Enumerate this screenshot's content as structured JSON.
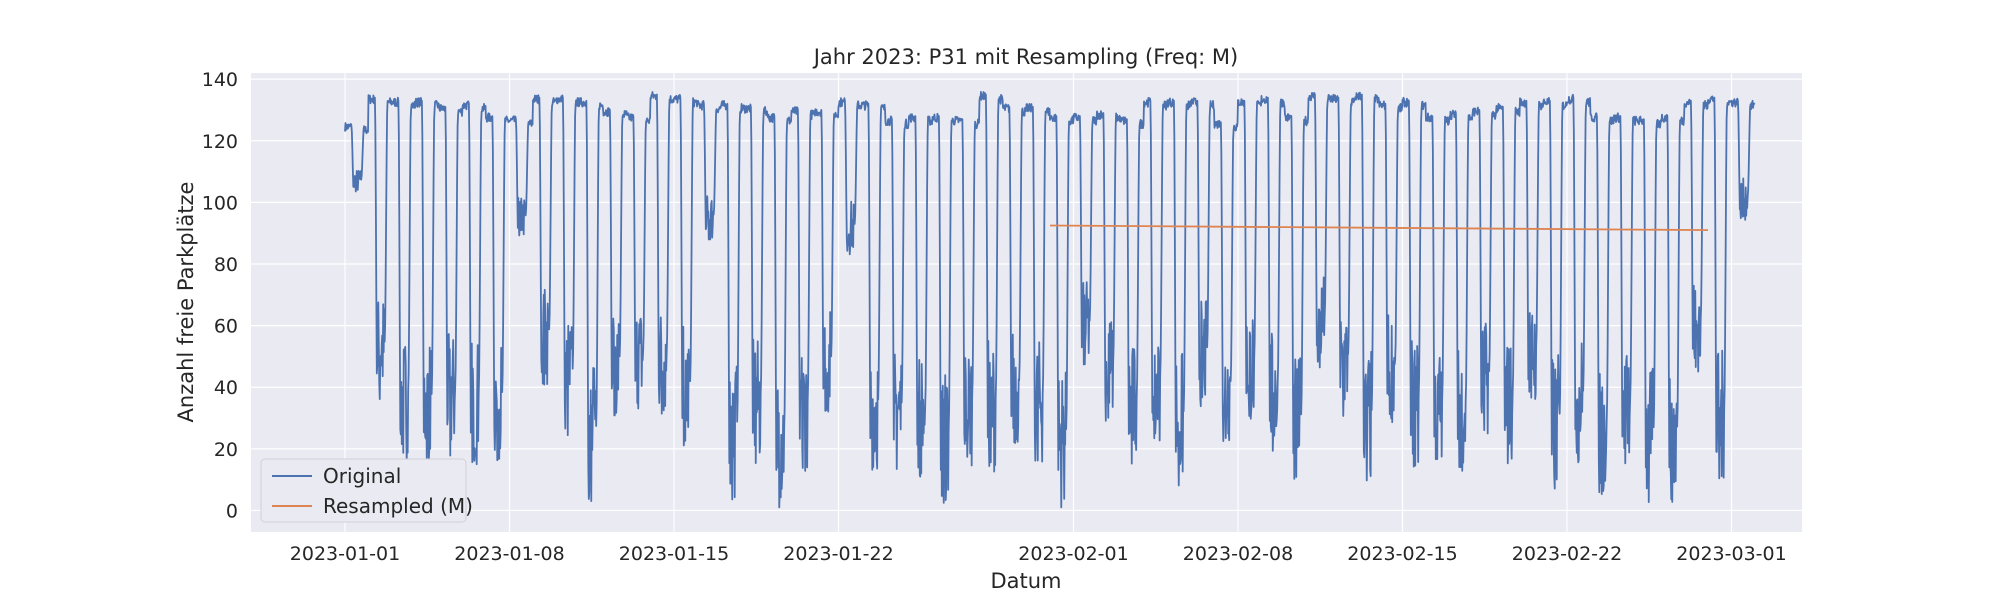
{
  "chart_data": {
    "type": "line",
    "title": "Jahr 2023: P31 mit Resampling (Freq: M)",
    "xlabel": "Datum",
    "ylabel": "Anzahl freie Parkplätze",
    "xlim": [
      "2022-12-28",
      "2023-03-04"
    ],
    "ylim": [
      -7,
      142
    ],
    "x_ticks": [
      "2023-01-01",
      "2023-01-08",
      "2023-01-15",
      "2023-01-22",
      "2023-02-01",
      "2023-02-08",
      "2023-02-15",
      "2023-02-22",
      "2023-03-01"
    ],
    "y_ticks": [
      0,
      20,
      40,
      60,
      80,
      100,
      120,
      140
    ],
    "grid": true,
    "legend_position": "lower-left",
    "colors": {
      "plot_background": "#EAEAF2",
      "grid": "#FFFFFF",
      "original": "#4C72B0",
      "resampled": "#DD8452",
      "text": "#262626"
    },
    "series": [
      {
        "name": "Original",
        "color": "#4C72B0",
        "note_on_shape": "daily cycle: high (about 125-135) at night, low (about 0-60) during the day",
        "x": [
          "2023-01-01",
          "2023-01-02",
          "2023-01-03",
          "2023-01-04",
          "2023-01-05",
          "2023-01-06",
          "2023-01-07",
          "2023-01-08",
          "2023-01-09",
          "2023-01-10",
          "2023-01-11",
          "2023-01-12",
          "2023-01-13",
          "2023-01-14",
          "2023-01-15",
          "2023-01-16",
          "2023-01-17",
          "2023-01-18",
          "2023-01-19",
          "2023-01-20",
          "2023-01-21",
          "2023-01-22",
          "2023-01-23",
          "2023-01-24",
          "2023-01-25",
          "2023-01-26",
          "2023-01-27",
          "2023-01-28",
          "2023-01-29",
          "2023-01-30",
          "2023-01-31",
          "2023-02-01",
          "2023-02-02",
          "2023-02-03",
          "2023-02-04",
          "2023-02-05",
          "2023-02-06",
          "2023-02-07",
          "2023-02-08",
          "2023-02-09",
          "2023-02-10",
          "2023-02-11",
          "2023-02-12",
          "2023-02-13",
          "2023-02-14",
          "2023-02-15",
          "2023-02-16",
          "2023-02-17",
          "2023-02-18",
          "2023-02-19",
          "2023-02-20",
          "2023-02-21",
          "2023-02-22",
          "2023-02-23",
          "2023-02-24",
          "2023-02-25",
          "2023-02-26",
          "2023-02-27",
          "2023-02-28",
          "2023-03-01"
        ],
        "night_high": [
          125,
          134,
          133,
          133,
          131,
          132,
          128,
          127,
          134,
          134,
          133,
          130,
          128,
          135,
          134,
          132,
          132,
          131,
          128,
          130,
          130,
          133,
          132,
          127,
          128,
          128,
          127,
          135,
          131,
          131,
          128,
          128,
          129,
          127,
          133,
          133,
          133,
          126,
          133,
          134,
          128,
          135,
          134,
          135,
          132,
          133,
          128,
          129,
          130,
          131,
          133,
          133,
          134,
          128,
          128,
          127,
          128,
          133,
          134,
          133
        ],
        "day_low": [
          103,
          35,
          15,
          14,
          17,
          14,
          16,
          88,
          40,
          24,
          1,
          30,
          33,
          30,
          19,
          87,
          3,
          14,
          1,
          12,
          30,
          83,
          12,
          12,
          10,
          1,
          14,
          12,
          20,
          14,
          1,
          45,
          28,
          14,
          21,
          7,
          33,
          21,
          28,
          18,
          7,
          45,
          30,
          7,
          28,
          13,
          13,
          12,
          24,
          15,
          33,
          6,
          15,
          4,
          13,
          2,
          2,
          44,
          7,
          94
        ]
      },
      {
        "name": "Resampled (M)",
        "color": "#DD8452",
        "x": [
          "2023-01-31",
          "2023-02-28"
        ],
        "y": [
          92.5,
          91.0
        ]
      }
    ]
  }
}
